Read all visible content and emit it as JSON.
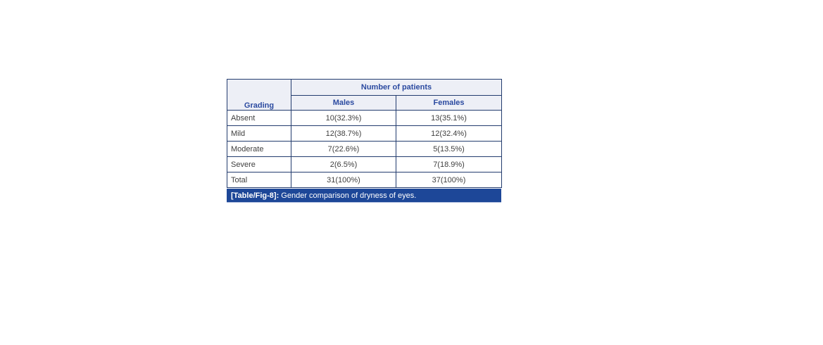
{
  "figure": {
    "caption": {
      "label": "[Table/Fig-8]:",
      "text": " Gender comparison of dryness of eyes."
    },
    "table": {
      "corner_header": "Grading",
      "group_header": "Number of patients",
      "columns": [
        "Males",
        "Females"
      ],
      "rows": [
        {
          "grading": "Absent",
          "males": "10(32.3%)",
          "females": "13(35.1%)"
        },
        {
          "grading": "Mild",
          "males": "12(38.7%)",
          "females": "12(32.4%)"
        },
        {
          "grading": "Moderate",
          "males": "7(22.6%)",
          "females": "5(13.5%)"
        },
        {
          "grading": "Severe",
          "males": "2(6.5%)",
          "females": "7(18.9%)"
        },
        {
          "grading": "Total",
          "males": "31(100%)",
          "females": "37(100%)"
        }
      ]
    },
    "colors": {
      "border": "#233c6e",
      "header_background": "#edeff6",
      "header_text": "#2b4aa0",
      "body_text": "#3f3f3f",
      "caption_background": "#1d4798",
      "caption_text": "#ffffff"
    }
  }
}
